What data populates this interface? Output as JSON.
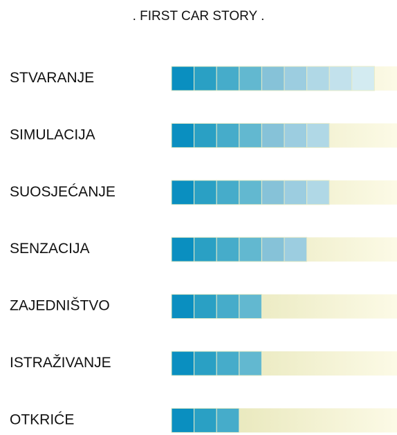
{
  "chart_data": {
    "type": "bar",
    "orientation": "horizontal",
    "title": ". FIRST CAR STORY .",
    "categories": [
      "STVARANJE",
      "SIMULACIJA",
      "SUOSJEĆANJE",
      "SENZACIJA",
      "ZAJEDNIŠTVO",
      "ISTRAŽIVANJE",
      "OTKRIĆE"
    ],
    "values": [
      9,
      7,
      7,
      6,
      4,
      4,
      3
    ],
    "xlim": [
      0,
      10
    ],
    "segment_colors": [
      "#0a8fc0",
      "#2aa0c4",
      "#46acca",
      "#62b8d0",
      "#86c2d8",
      "#9ccde0",
      "#b0d8e6",
      "#c2e1ec",
      "#d3ebf1"
    ],
    "track_colors": [
      "#e2e2ae",
      "#fcfae6"
    ]
  }
}
